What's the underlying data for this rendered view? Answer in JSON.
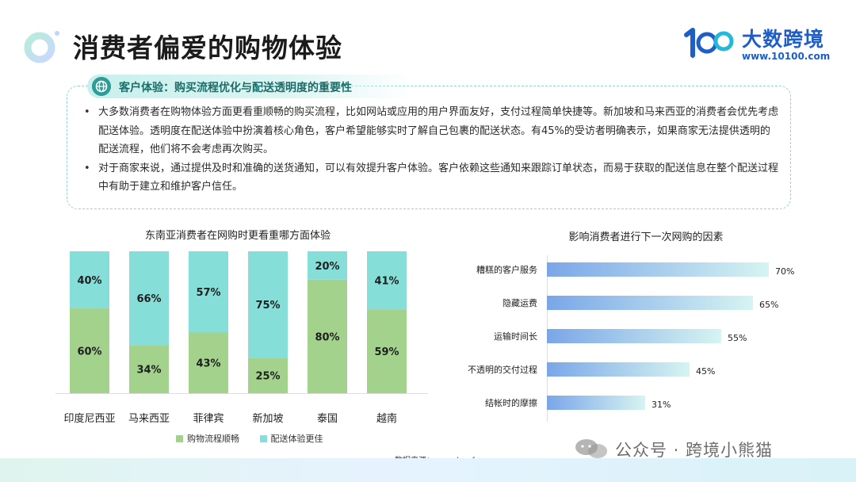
{
  "header": {
    "title": "消费者偏爱的购物体验",
    "logo_name": "大数跨境",
    "logo_url": "www.10100.com",
    "logo_mark_text": "100"
  },
  "info": {
    "heading": "客户体验：购买流程优化与配送透明度的重要性",
    "bullets": [
      "大多数消费者在购物体验方面更看重顺畅的购买流程，比如网站或应用的用户界面友好，支付过程简单快捷等。新加坡和马来西亚的消费者会优先考虑配送体验。透明度在配送体验中扮演着核心角色，客户希望能够实时了解自己包裹的配送状态。有45%的受访者明确表示，如果商家无法提供透明的配送流程，他们将不会考虑再次购买。",
      "对于商家来说，通过提供及时和准确的送货通知，可以有效提升客户体验。客户依赖这些通知来跟踪订单状态，而易于获取的配送信息在整个配送过程中有助于建立和维护客户信任。"
    ]
  },
  "colors": {
    "green": "#a3d28c",
    "teal": "#86ded9",
    "hbar_dark": "#7aa6e8",
    "hbar_light": "#d6f4f1",
    "brand": "#1e5ec8"
  },
  "source": "数据来源：parcelperform",
  "watermark": "公众号 · 跨境小熊猫",
  "chart_data": [
    {
      "type": "bar",
      "stacked": true,
      "title": "东南亚消费者在网购时更看重哪方面体验",
      "categories": [
        "印度尼西亚",
        "马来西亚",
        "菲律宾",
        "新加坡",
        "泰国",
        "越南"
      ],
      "series": [
        {
          "name": "购物流程顺畅",
          "color": "#a3d28c",
          "values": [
            60,
            34,
            43,
            25,
            80,
            59
          ]
        },
        {
          "name": "配送体验更佳",
          "color": "#86ded9",
          "values": [
            40,
            66,
            57,
            75,
            20,
            41
          ]
        }
      ],
      "unit": "%",
      "ylim": [
        0,
        100
      ],
      "legend_position": "bottom"
    },
    {
      "type": "bar",
      "orientation": "horizontal",
      "title": "影响消费者进行下一次网购的因素",
      "categories": [
        "糟糕的客户服务",
        "隐藏运费",
        "运输时间长",
        "不透明的交付过程",
        "结帐时的摩擦"
      ],
      "values": [
        70,
        65,
        55,
        45,
        31
      ],
      "unit": "%",
      "xlim": [
        0,
        100
      ]
    }
  ]
}
